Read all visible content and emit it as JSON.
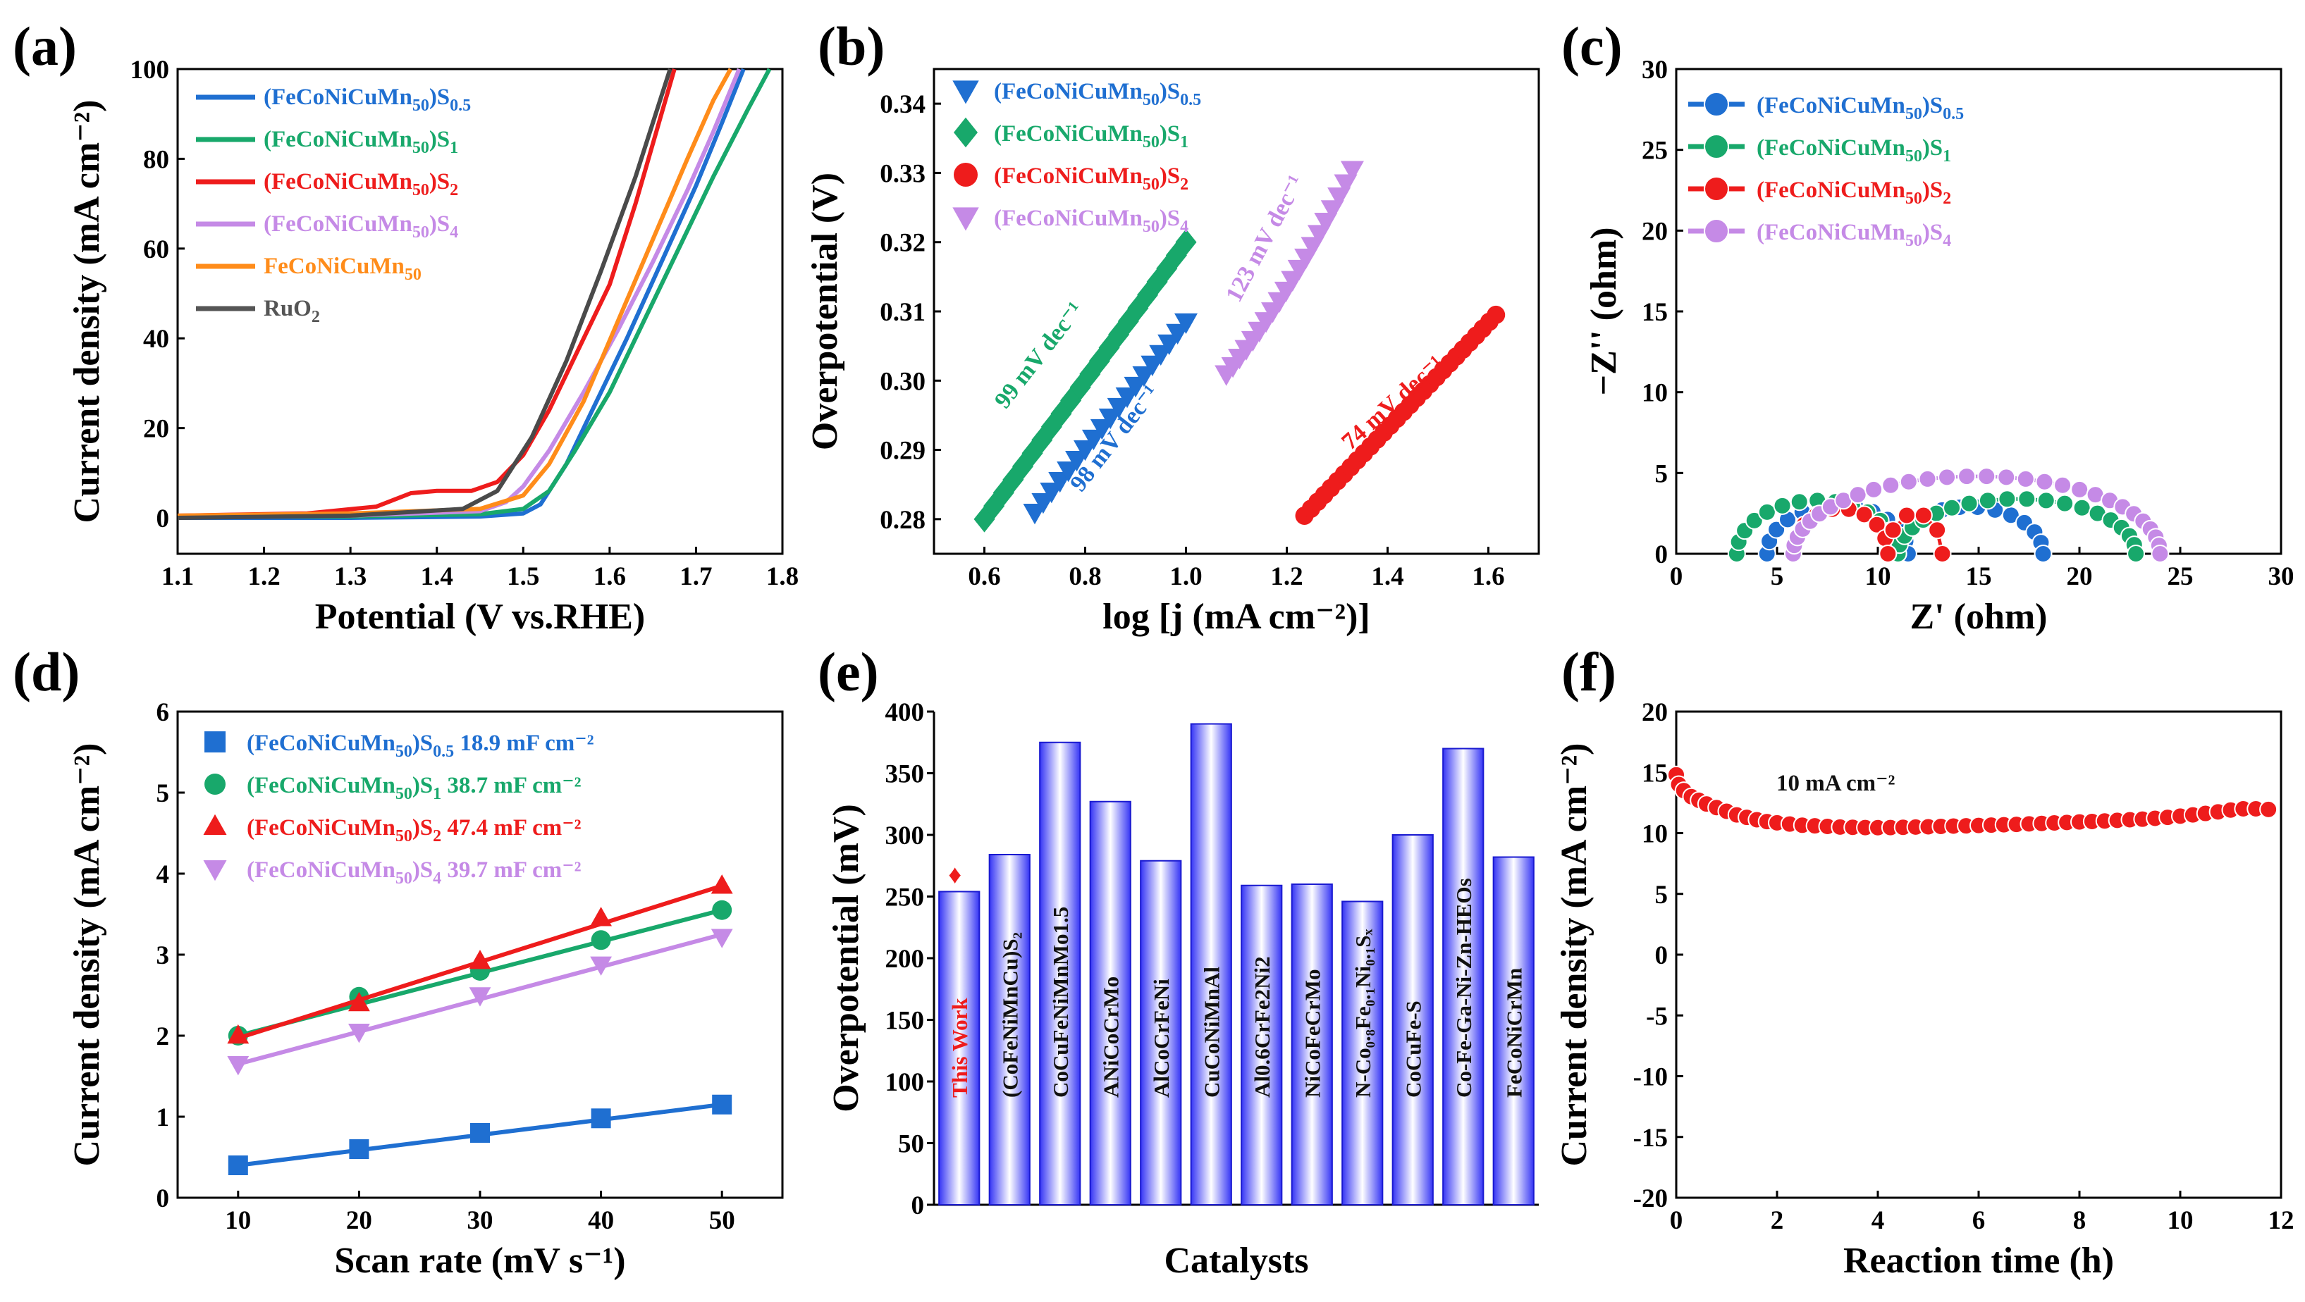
{
  "figure": {
    "panel_labels": [
      "(a)",
      "(b)",
      "(c)",
      "(d)",
      "(e)",
      "(f)"
    ],
    "series_colors": {
      "S0.5": "#1f6fd1",
      "S1": "#18a86b",
      "S2": "#ee1c1c",
      "S4": "#c58ae6",
      "base": "#ff8c1a",
      "RuO2": "#4a4a4a",
      "bar": "#3c3cff"
    }
  },
  "chart_data": [
    {
      "panel": "(a)",
      "type": "line",
      "xlabel": "Potential (V vs.RHE)",
      "ylabel": "Current density (mA cm⁻²)",
      "xlim": [
        1.1,
        1.8
      ],
      "ylim": [
        -8,
        100
      ],
      "xticks": [
        "1.1",
        "1.2",
        "1.3",
        "1.4",
        "1.5",
        "1.6",
        "1.7",
        "1.8"
      ],
      "yticks": [
        "0",
        "20",
        "40",
        "60",
        "80",
        "100"
      ],
      "legend": [
        {
          "base": "(FeCoNiCuMn",
          "sub1": "50",
          "mid": ")S",
          "sub2": "0.5",
          "color": "#1f6fd1"
        },
        {
          "base": "(FeCoNiCuMn",
          "sub1": "50",
          "mid": ")S",
          "sub2": "1",
          "color": "#18a86b"
        },
        {
          "base": "(FeCoNiCuMn",
          "sub1": "50",
          "mid": ")S",
          "sub2": "2",
          "color": "#ee1c1c"
        },
        {
          "base": "(FeCoNiCuMn",
          "sub1": "50",
          "mid": ")S",
          "sub2": "4",
          "color": "#c58ae6"
        },
        {
          "base": "FeCoNiCuMn",
          "sub1": "50",
          "mid": "",
          "sub2": "",
          "color": "#ff8c1a"
        },
        {
          "base": "RuO",
          "sub1": "2",
          "mid": "",
          "sub2": "",
          "color": "#555555"
        }
      ],
      "series": [
        {
          "name": "(FeCoNiCuMn50)S0.5",
          "color": "#1f6fd1",
          "points": [
            [
              1.1,
              0
            ],
            [
              1.3,
              0
            ],
            [
              1.45,
              0.3
            ],
            [
              1.5,
              1
            ],
            [
              1.52,
              3
            ],
            [
              1.55,
              12
            ],
            [
              1.58,
              24
            ],
            [
              1.62,
              40
            ],
            [
              1.66,
              57
            ],
            [
              1.7,
              74
            ],
            [
              1.73,
              88
            ],
            [
              1.755,
              100
            ]
          ]
        },
        {
          "name": "(FeCoNiCuMn50)S1",
          "color": "#18a86b",
          "points": [
            [
              1.1,
              0.3
            ],
            [
              1.3,
              0.3
            ],
            [
              1.45,
              0.8
            ],
            [
              1.5,
              2
            ],
            [
              1.53,
              6
            ],
            [
              1.56,
              15
            ],
            [
              1.6,
              28
            ],
            [
              1.64,
              44
            ],
            [
              1.68,
              60
            ],
            [
              1.72,
              76
            ],
            [
              1.76,
              91
            ],
            [
              1.785,
              100
            ]
          ]
        },
        {
          "name": "(FeCoNiCuMn50)S2",
          "color": "#ee1c1c",
          "points": [
            [
              1.1,
              0.5
            ],
            [
              1.25,
              1
            ],
            [
              1.33,
              2.5
            ],
            [
              1.37,
              5.5
            ],
            [
              1.4,
              6
            ],
            [
              1.44,
              6
            ],
            [
              1.47,
              8
            ],
            [
              1.5,
              14
            ],
            [
              1.53,
              24
            ],
            [
              1.56,
              36
            ],
            [
              1.6,
              52
            ],
            [
              1.63,
              70
            ],
            [
              1.66,
              90
            ],
            [
              1.675,
              100
            ]
          ]
        },
        {
          "name": "(FeCoNiCuMn50)S4",
          "color": "#c58ae6",
          "points": [
            [
              1.1,
              0.3
            ],
            [
              1.3,
              0.5
            ],
            [
              1.45,
              1.5
            ],
            [
              1.48,
              3.5
            ],
            [
              1.5,
              7
            ],
            [
              1.53,
              15
            ],
            [
              1.57,
              28
            ],
            [
              1.61,
              42
            ],
            [
              1.65,
              57
            ],
            [
              1.69,
              73
            ],
            [
              1.72,
              86
            ],
            [
              1.75,
              100
            ]
          ]
        },
        {
          "name": "FeCoNiCuMn50",
          "color": "#ff8c1a",
          "points": [
            [
              1.1,
              0.5
            ],
            [
              1.3,
              1
            ],
            [
              1.45,
              2
            ],
            [
              1.5,
              5
            ],
            [
              1.53,
              12
            ],
            [
              1.57,
              26
            ],
            [
              1.61,
              44
            ],
            [
              1.65,
              62
            ],
            [
              1.69,
              80
            ],
            [
              1.72,
              93
            ],
            [
              1.74,
              100
            ]
          ]
        },
        {
          "name": "RuO2",
          "color": "#4a4a4a",
          "points": [
            [
              1.1,
              0
            ],
            [
              1.3,
              0.5
            ],
            [
              1.43,
              2
            ],
            [
              1.47,
              6
            ],
            [
              1.51,
              18
            ],
            [
              1.55,
              35
            ],
            [
              1.59,
              55
            ],
            [
              1.63,
              76
            ],
            [
              1.66,
              94
            ],
            [
              1.67,
              100
            ]
          ]
        }
      ]
    },
    {
      "panel": "(b)",
      "type": "scatter",
      "xlabel": "log [j (mA cm⁻²)]",
      "ylabel": "Overpotential (V)",
      "xlim": [
        0.5,
        1.7
      ],
      "ylim": [
        0.275,
        0.345
      ],
      "xticks": [
        "0.6",
        "0.8",
        "1.0",
        "1.2",
        "1.4",
        "1.6"
      ],
      "yticks": [
        "0.28",
        "0.29",
        "0.30",
        "0.31",
        "0.32",
        "0.33",
        "0.34"
      ],
      "legend": [
        {
          "base": "(FeCoNiCuMn",
          "sub1": "50",
          "mid": ")S",
          "sub2": "0.5",
          "color": "#1f6fd1",
          "marker": "tri-down"
        },
        {
          "base": "(FeCoNiCuMn",
          "sub1": "50",
          "mid": ")S",
          "sub2": "1",
          "color": "#18a86b",
          "marker": "diamond"
        },
        {
          "base": "(FeCoNiCuMn",
          "sub1": "50",
          "mid": ")S",
          "sub2": "2",
          "color": "#ee1c1c",
          "marker": "circle"
        },
        {
          "base": "(FeCoNiCuMn",
          "sub1": "50",
          "mid": ")S",
          "sub2": "4",
          "color": "#c58ae6",
          "marker": "tri-down"
        }
      ],
      "series": [
        {
          "name": "(FeCoNiCuMn50)S0.5",
          "color": "#1f6fd1",
          "marker": "tri-down",
          "x_range": [
            0.7,
            1.0
          ],
          "y_range": [
            0.281,
            0.3085
          ],
          "curve": 0,
          "n": 19
        },
        {
          "name": "(FeCoNiCuMn50)S1",
          "color": "#18a86b",
          "marker": "diamond",
          "x_range": [
            0.6,
            1.0
          ],
          "y_range": [
            0.28,
            0.32
          ],
          "curve": 0,
          "n": 22
        },
        {
          "name": "(FeCoNiCuMn50)S2",
          "color": "#ee1c1c",
          "marker": "circle",
          "x_range": [
            1.235,
            1.615
          ],
          "y_range": [
            0.2805,
            0.3095
          ],
          "curve": 0,
          "n": 30
        },
        {
          "name": "(FeCoNiCuMn50)S4",
          "color": "#c58ae6",
          "marker": "tri-down",
          "x_range": [
            1.08,
            1.33
          ],
          "y_range": [
            0.301,
            0.3305
          ],
          "curve": 0.35,
          "n": 20
        }
      ],
      "annotations": [
        {
          "text": "99 mV dec⁻¹",
          "color": "#18a86b",
          "x": 0.72,
          "y": 0.303,
          "angle": -52
        },
        {
          "text": "98 mV dec⁻¹",
          "color": "#1f6fd1",
          "x": 0.87,
          "y": 0.291,
          "angle": -52
        },
        {
          "text": "123 mV dec⁻¹",
          "color": "#c58ae6",
          "x": 1.17,
          "y": 0.32,
          "angle": -62
        },
        {
          "text": "74 mV dec⁻¹",
          "color": "#ee1c1c",
          "x": 1.42,
          "y": 0.296,
          "angle": -42
        }
      ]
    },
    {
      "panel": "(c)",
      "type": "scatter",
      "xlabel": "Z' (ohm)",
      "ylabel": "−Z'' (ohm)",
      "xlim": [
        0,
        30
      ],
      "ylim": [
        0,
        30
      ],
      "xticks": [
        "0",
        "5",
        "10",
        "15",
        "20",
        "25",
        "30"
      ],
      "yticks": [
        "0",
        "5",
        "10",
        "15",
        "20",
        "25",
        "30"
      ],
      "legend": [
        {
          "base": "(FeCoNiCuMn",
          "sub1": "50",
          "mid": ")S",
          "sub2": "0.5",
          "color": "#1f6fd1"
        },
        {
          "base": "(FeCoNiCuMn",
          "sub1": "50",
          "mid": ")S",
          "sub2": "1",
          "color": "#18a86b"
        },
        {
          "base": "(FeCoNiCuMn",
          "sub1": "50",
          "mid": ")S",
          "sub2": "2",
          "color": "#ee1c1c"
        },
        {
          "base": "(FeCoNiCuMn",
          "sub1": "50",
          "mid": ")S",
          "sub2": "4",
          "color": "#c58ae6"
        }
      ],
      "series": [
        {
          "name": "(FeCoNiCuMn50)S0.5",
          "color": "#1f6fd1",
          "arcs": [
            {
              "start": 4.5,
              "end": 11.5,
              "height": 3.0,
              "n": 13
            },
            {
              "start": 10.8,
              "end": 18.2,
              "height": 2.9,
              "n": 14
            }
          ]
        },
        {
          "name": "(FeCoNiCuMn50)S1",
          "color": "#18a86b",
          "arcs": [
            {
              "start": 3.0,
              "end": 11.0,
              "height": 3.3,
              "n": 15
            },
            {
              "start": 11.0,
              "end": 22.8,
              "height": 3.4,
              "n": 20
            }
          ]
        },
        {
          "name": "(FeCoNiCuMn50)S2",
          "color": "#ee1c1c",
          "arcs": [
            {
              "start": 5.8,
              "end": 10.5,
              "height": 2.8,
              "n": 10
            },
            {
              "start": 10.5,
              "end": 13.2,
              "height": 2.5,
              "n": 6
            }
          ]
        },
        {
          "name": "(FeCoNiCuMn50)S4",
          "color": "#c58ae6",
          "arcs": [
            {
              "start": 5.8,
              "end": 24.0,
              "height": 4.8,
              "n": 30
            }
          ]
        }
      ]
    },
    {
      "panel": "(d)",
      "type": "scatter",
      "xlabel": "Scan rate (mV s⁻¹)",
      "ylabel": "Current density (mA cm⁻²)",
      "xlim": [
        5,
        55
      ],
      "ylim": [
        0,
        6
      ],
      "xticks": [
        "10",
        "20",
        "30",
        "40",
        "50"
      ],
      "yticks": [
        "0",
        "1",
        "2",
        "3",
        "4",
        "5",
        "6"
      ],
      "x": [
        10,
        20,
        30,
        40,
        50
      ],
      "legend": [
        {
          "base": "(FeCoNiCuMn",
          "sub1": "50",
          "mid": ")S",
          "sub2": "0.5",
          "tail": " 18.9 mF cm⁻²",
          "color": "#1f6fd1",
          "marker": "square"
        },
        {
          "base": "(FeCoNiCuMn",
          "sub1": "50",
          "mid": ")S",
          "sub2": "1",
          "tail": " 38.7 mF cm⁻²",
          "color": "#18a86b",
          "marker": "circle"
        },
        {
          "base": "(FeCoNiCuMn",
          "sub1": "50",
          "mid": ")S",
          "sub2": "2",
          "tail": " 47.4 mF cm⁻²",
          "color": "#ee1c1c",
          "marker": "tri-up"
        },
        {
          "base": "(FeCoNiCuMn",
          "sub1": "50",
          "mid": ")S",
          "sub2": "4",
          "tail": " 39.7 mF cm⁻²",
          "color": "#c58ae6",
          "marker": "tri-down"
        }
      ],
      "series": [
        {
          "name": "(FeCoNiCuMn50)S0.5",
          "color": "#1f6fd1",
          "marker": "square",
          "values": [
            0.4,
            0.6,
            0.8,
            0.98,
            1.15
          ],
          "fit": [
            0.4,
            1.15
          ]
        },
        {
          "name": "(FeCoNiCuMn50)S1",
          "color": "#18a86b",
          "marker": "circle",
          "values": [
            2.0,
            2.48,
            2.8,
            3.18,
            3.55
          ],
          "fit": [
            2.0,
            3.55
          ]
        },
        {
          "name": "(FeCoNiCuMn50)S2",
          "color": "#ee1c1c",
          "marker": "tri-up",
          "values": [
            2.0,
            2.4,
            2.92,
            3.45,
            3.85
          ],
          "fit": [
            1.97,
            3.85
          ]
        },
        {
          "name": "(FeCoNiCuMn50)S4",
          "color": "#c58ae6",
          "marker": "tri-down",
          "values": [
            1.65,
            2.05,
            2.5,
            2.88,
            3.22
          ],
          "fit": [
            1.65,
            3.25
          ]
        }
      ]
    },
    {
      "panel": "(e)",
      "type": "bar",
      "xlabel": "Catalysts",
      "ylabel": "Overpotential (mV)",
      "ylim": [
        0,
        400
      ],
      "yticks": [
        "0",
        "50",
        "100",
        "150",
        "200",
        "250",
        "300",
        "350",
        "400"
      ],
      "categories": [
        {
          "text": "This Work",
          "color": "#ee1c1c"
        },
        {
          "text": "(CoFeNiMnCu)S₂",
          "color": "#111111"
        },
        {
          "text": "CoCuFeNiMnMo1.5",
          "color": "#111111"
        },
        {
          "text": "ANiCoCrMo",
          "color": "#111111"
        },
        {
          "text": "AlCoCrFeNi",
          "color": "#111111"
        },
        {
          "text": "CuCoNiMnAl",
          "color": "#111111"
        },
        {
          "text": "Al0.6CrFe2Ni2",
          "color": "#111111"
        },
        {
          "text": "NiCoFeCrMo",
          "color": "#111111"
        },
        {
          "text": "N-Co₀.₈Fe₀.₁Ni₀.₁Sₓ",
          "color": "#111111"
        },
        {
          "text": "CoCuFe-S",
          "color": "#111111"
        },
        {
          "text": "Co-Fe-Ga-Ni-Zn-HEOs",
          "color": "#111111"
        },
        {
          "text": "FeCoNiCrMn",
          "color": "#111111"
        }
      ],
      "values": [
        254,
        284,
        375,
        327,
        279,
        390,
        259,
        260,
        246,
        300,
        370,
        282
      ],
      "highlight_marker": "♦"
    },
    {
      "panel": "(f)",
      "type": "scatter",
      "xlabel": "Reaction time (h)",
      "ylabel": "Current density (mA cm⁻²)",
      "xlim": [
        0,
        12
      ],
      "ylim": [
        -20,
        20
      ],
      "xticks": [
        "0",
        "2",
        "4",
        "6",
        "8",
        "10",
        "12"
      ],
      "yticks": [
        "-20",
        "-15",
        "-10",
        "-5",
        "0",
        "5",
        "10",
        "15",
        "20"
      ],
      "annotation": "10 mA cm⁻²",
      "color": "#ee1c1c",
      "x": [
        0,
        0.05,
        0.15,
        0.3,
        0.45,
        0.6,
        0.8,
        1.0,
        1.2,
        1.4,
        1.6,
        1.8,
        2.0,
        2.25,
        2.5,
        2.75,
        3.0,
        3.25,
        3.5,
        3.75,
        4.0,
        4.25,
        4.5,
        4.75,
        5.0,
        5.25,
        5.5,
        5.75,
        6.0,
        6.25,
        6.5,
        6.75,
        7.0,
        7.25,
        7.5,
        7.75,
        8.0,
        8.25,
        8.5,
        8.75,
        9.0,
        9.25,
        9.5,
        9.75,
        10.0,
        10.25,
        10.5,
        10.75,
        11.0,
        11.25,
        11.5,
        11.75
      ],
      "values": [
        14.8,
        14.0,
        13.5,
        13.0,
        12.7,
        12.4,
        12.1,
        11.8,
        11.5,
        11.3,
        11.1,
        10.95,
        10.85,
        10.75,
        10.65,
        10.6,
        10.55,
        10.5,
        10.48,
        10.46,
        10.45,
        10.46,
        10.48,
        10.5,
        10.52,
        10.55,
        10.58,
        10.6,
        10.63,
        10.66,
        10.69,
        10.72,
        10.76,
        10.8,
        10.84,
        10.88,
        10.92,
        10.96,
        11.0,
        11.05,
        11.1,
        11.15,
        11.22,
        11.3,
        11.4,
        11.5,
        11.62,
        11.75,
        11.9,
        12.0,
        12.0,
        11.95
      ]
    }
  ]
}
